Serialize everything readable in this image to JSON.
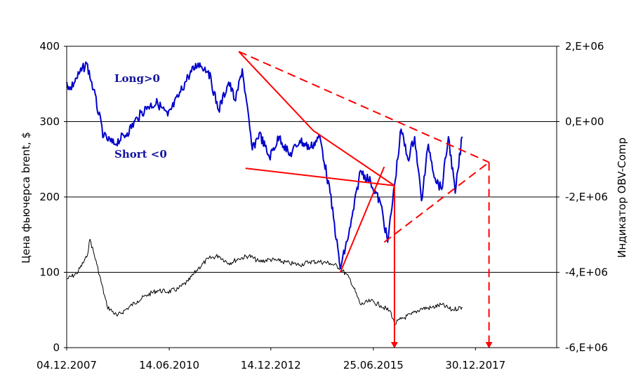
{
  "chart_data": {
    "type": "line",
    "title": "",
    "grid": true,
    "legend": "none",
    "x_axis": {
      "ticks": [
        "04.12.2007",
        "14.06.2010",
        "14.12.2012",
        "25.06.2015",
        "30.12.2017"
      ]
    },
    "left_axis": {
      "label": "Цена фьючерса brent, $",
      "ylim": [
        0,
        400
      ],
      "ticks": [
        "0",
        "100",
        "200",
        "300",
        "400"
      ]
    },
    "right_axis": {
      "label": "Индикатор OBV-Comp",
      "ylim": [
        -6000000,
        2000000
      ],
      "ticks": [
        "-6,E+06",
        "-4,E+06",
        "-2,E+06",
        "0,E+00",
        "2,E+06"
      ]
    },
    "annotations": {
      "long": "Long>0",
      "short": "Short <0"
    },
    "colors": {
      "price": "#000000",
      "indicator": "#0000cc",
      "trendlines": "#ff0000",
      "grid": "#000000",
      "annotation_text": "#1414a0"
    },
    "series": [
      {
        "axis": "left",
        "color": "#000000",
        "x": [
          "04.12.2007",
          "01.03.2008",
          "01.06.2008",
          "01.07.2008",
          "01.09.2008",
          "01.12.2008",
          "01.03.2009",
          "01.06.2009",
          "01.09.2009",
          "01.12.2009",
          "01.03.2010",
          "01.06.2010",
          "01.09.2010",
          "01.12.2010",
          "01.03.2011",
          "01.06.2011",
          "01.09.2011",
          "01.12.2011",
          "01.03.2012",
          "01.06.2012",
          "01.09.2012",
          "01.12.2012",
          "01.03.2013",
          "01.06.2013",
          "01.09.2013",
          "01.12.2013",
          "01.03.2014",
          "01.06.2014",
          "01.09.2014",
          "01.12.2014",
          "01.03.2015",
          "01.06.2015",
          "01.09.2015",
          "01.12.2015",
          "01.01.2016",
          "01.03.2016",
          "01.06.2016",
          "01.09.2016",
          "01.12.2016",
          "01.03.2017",
          "01.06.2017",
          "01.09.2017"
        ],
        "values": [
          91,
          98,
          120,
          144,
          110,
          55,
          42,
          52,
          62,
          70,
          76,
          74,
          78,
          88,
          105,
          118,
          122,
          112,
          118,
          122,
          114,
          117,
          115,
          112,
          110,
          114,
          114,
          112,
          106,
          90,
          57,
          62,
          56,
          47,
          31,
          38,
          44,
          52,
          53,
          57,
          50,
          54
        ]
      },
      {
        "axis": "right",
        "color": "#0000cc",
        "x": [
          "04.12.2007",
          "01.01.2008",
          "01.03.2008",
          "01.06.2008",
          "01.08.2008",
          "01.11.2008",
          "01.02.2009",
          "01.06.2009",
          "01.09.2009",
          "01.12.2009",
          "01.03.2010",
          "01.06.2010",
          "01.09.2010",
          "01.12.2010",
          "01.03.2011",
          "01.06.2011",
          "01.09.2011",
          "01.12.2011",
          "01.02.2012",
          "01.04.2012",
          "01.07.2012",
          "01.09.2012",
          "01.12.2012",
          "01.03.2013",
          "01.06.2013",
          "01.09.2013",
          "01.12.2013",
          "01.03.2014",
          "01.06.2014",
          "01.09.2014",
          "01.12.2014",
          "01.03.2015",
          "01.06.2015",
          "01.09.2015",
          "01.11.2015",
          "01.01.2016",
          "01.03.2016",
          "01.05.2016",
          "01.07.2016",
          "01.09.2016",
          "01.11.2016",
          "01.01.2017",
          "01.03.2017",
          "01.05.2017",
          "01.07.2017",
          "01.09.2017"
        ],
        "values": [
          1050000,
          850000,
          1150000,
          1550000,
          850000,
          -400000,
          -600000,
          -300000,
          100000,
          400000,
          500000,
          150000,
          650000,
          1200000,
          1550000,
          1350000,
          300000,
          1050000,
          550000,
          1400000,
          -750000,
          -300000,
          -950000,
          -400000,
          -900000,
          -500000,
          -700000,
          -400000,
          -1900000,
          -3900000,
          -2800000,
          -1300000,
          -1600000,
          -2200000,
          -3200000,
          -1700000,
          -200000,
          -1000000,
          -400000,
          -2100000,
          -600000,
          -1500000,
          -1800000,
          -400000,
          -1900000,
          -400000
        ]
      }
    ],
    "trendlines": [
      {
        "style": "solid",
        "x": [
          "01.03.2012",
          "01.01.2014"
        ],
        "y_left": [
          393,
          288
        ]
      },
      {
        "style": "solid",
        "x": [
          "01.01.2014",
          "01.01.2016"
        ],
        "y_left": [
          288,
          215
        ]
      },
      {
        "style": "solid",
        "x": [
          "01.05.2012",
          "01.01.2016"
        ],
        "y_left": [
          238,
          215
        ]
      },
      {
        "style": "solid",
        "x": [
          "01.09.2014",
          "01.10.2015"
        ],
        "y_left": [
          100,
          240
        ]
      },
      {
        "style": "dashed",
        "x": [
          "01.03.2012",
          "01.05.2018"
        ],
        "y_left": [
          393,
          246
        ]
      },
      {
        "style": "dashed",
        "x": [
          "01.10.2015",
          "01.05.2018"
        ],
        "y_left": [
          140,
          246
        ]
      }
    ],
    "projections": [
      {
        "style": "solid",
        "x": "01.01.2016",
        "from_y_left": 215,
        "to_y_left": 0
      },
      {
        "style": "dashed",
        "x": "01.05.2018",
        "from_y_left": 246,
        "to_y_left": 0
      }
    ]
  }
}
